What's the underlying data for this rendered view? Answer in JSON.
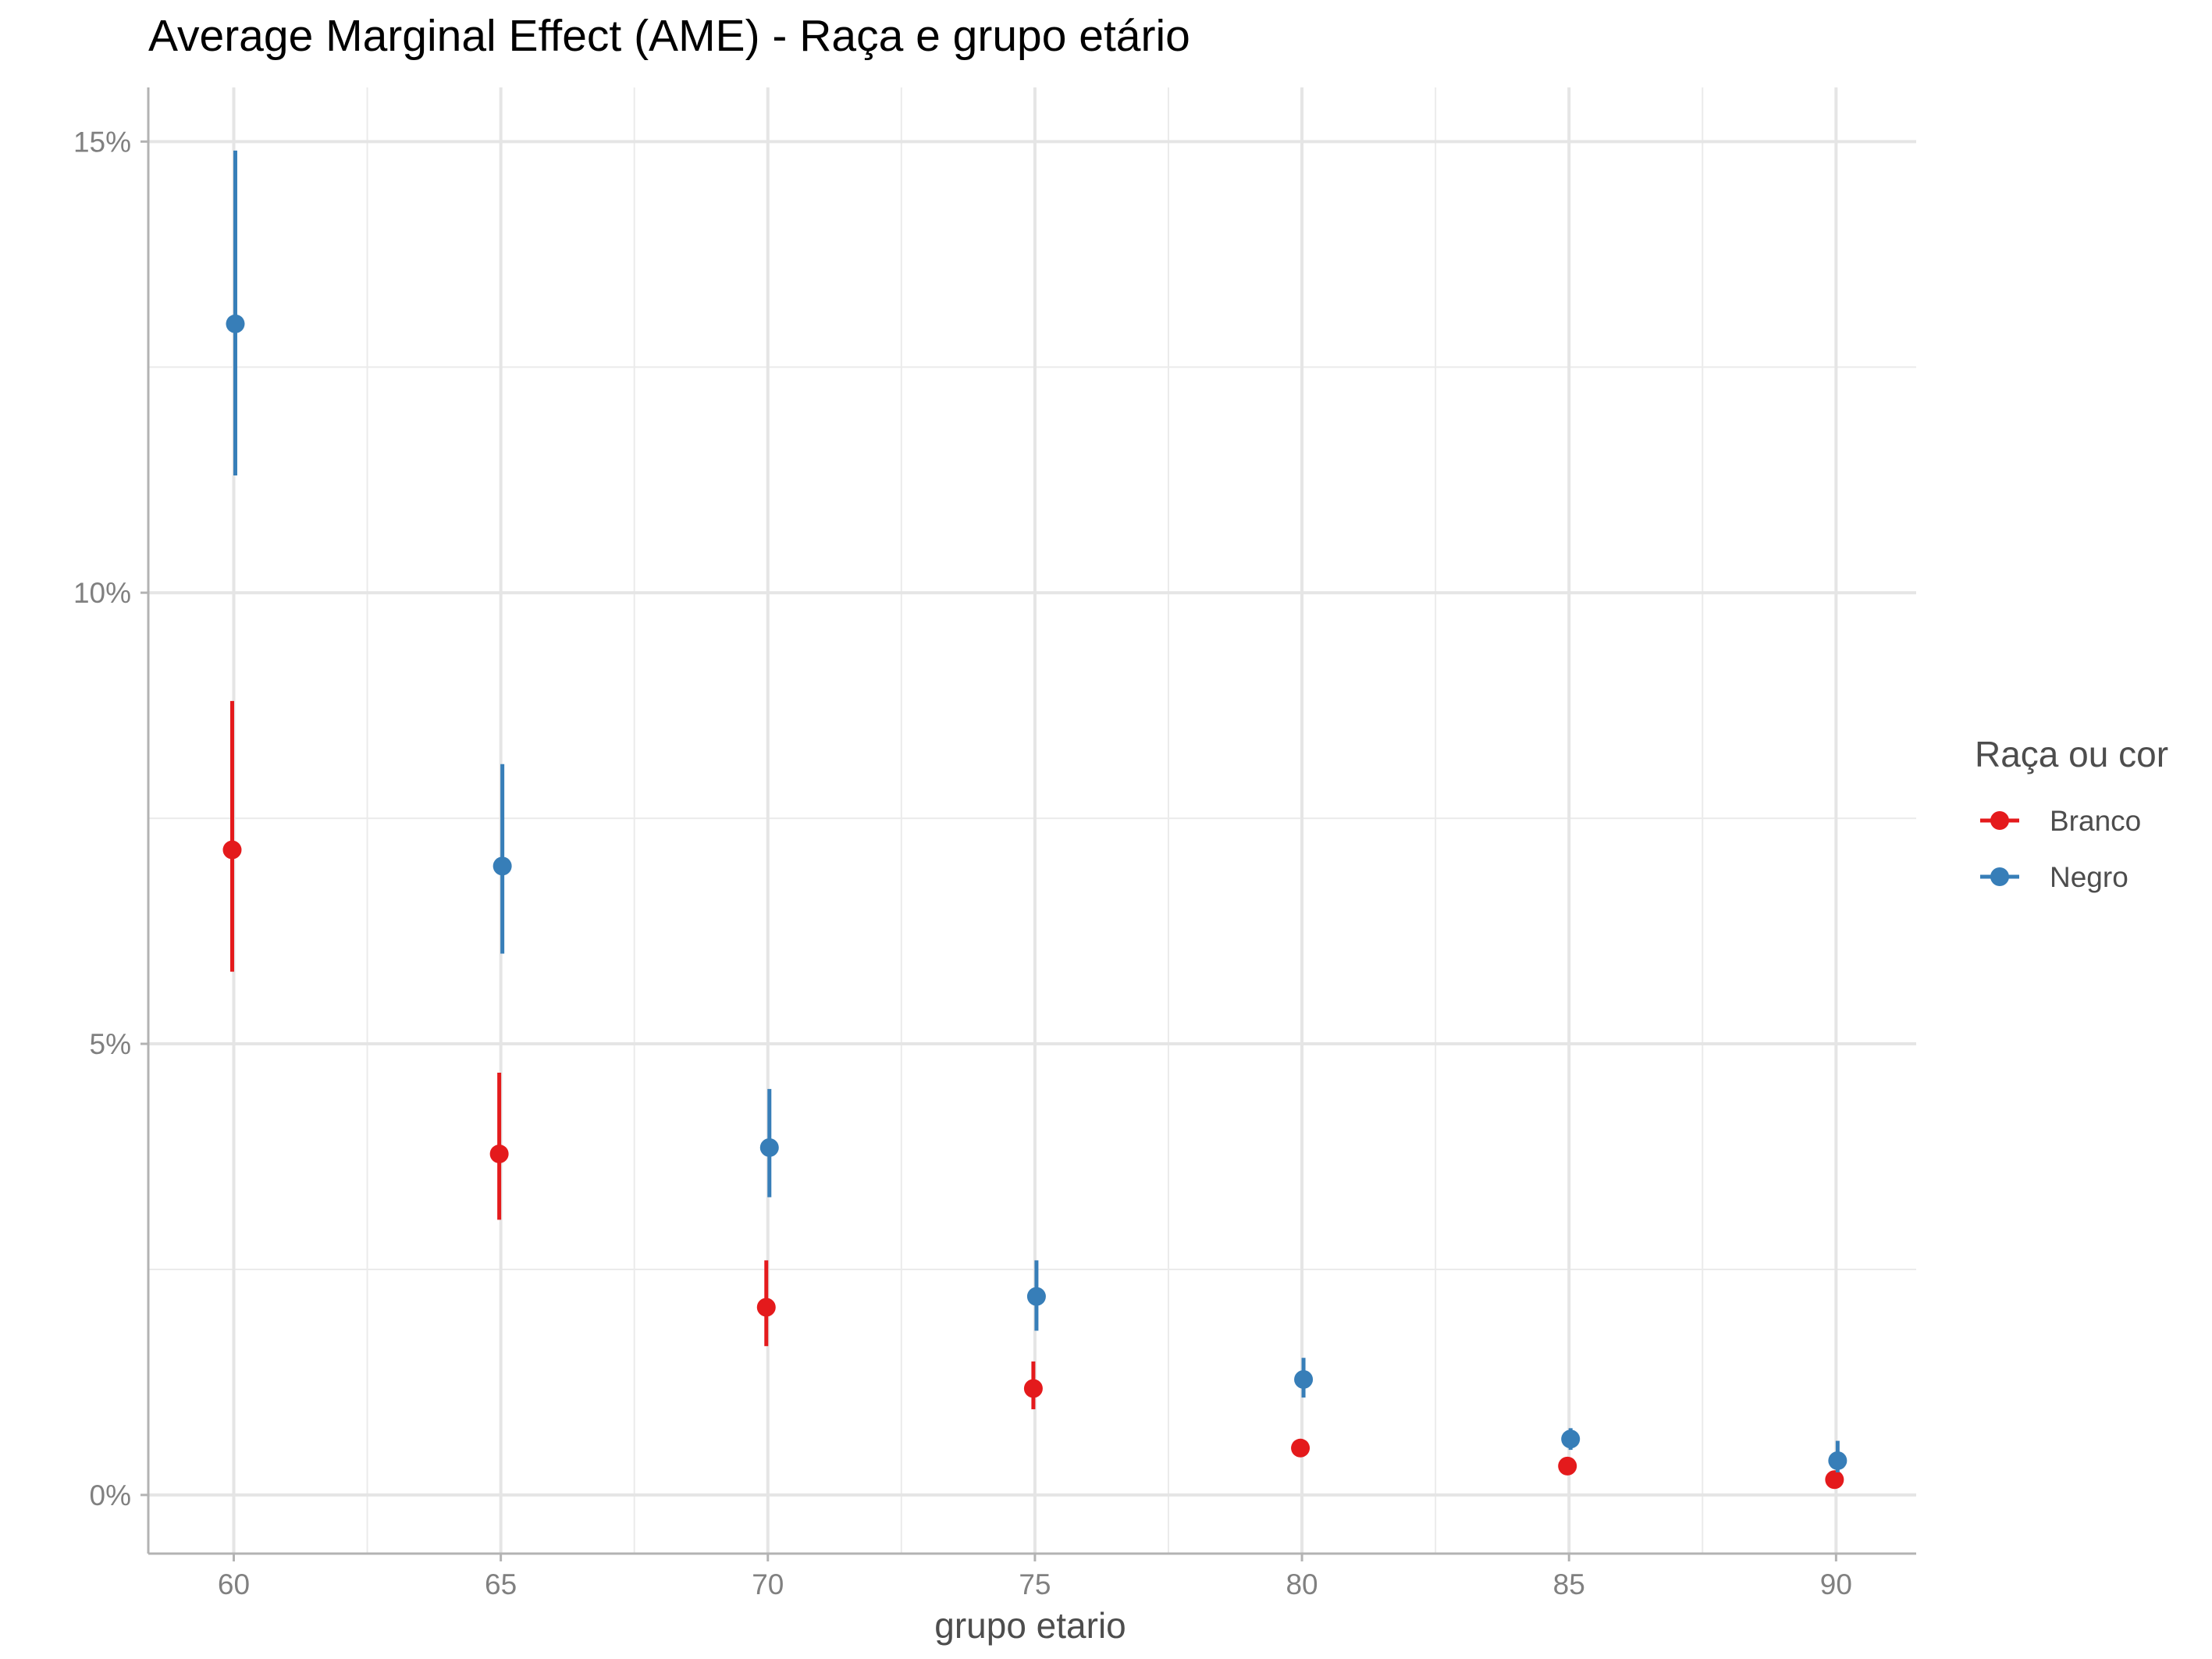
{
  "chart_data": {
    "type": "scatter",
    "title": "Average Marginal Effect (AME) - Raça e grupo etário",
    "xlabel": "grupo etario",
    "ylabel": "",
    "x": [
      60,
      65,
      70,
      75,
      80,
      85,
      90
    ],
    "x_ticks": [
      "60",
      "65",
      "70",
      "75",
      "80",
      "85",
      "90"
    ],
    "y_ticks": [
      {
        "value": 0,
        "label": "0%"
      },
      {
        "value": 5,
        "label": "5%"
      },
      {
        "value": 10,
        "label": "10%"
      },
      {
        "value": 15,
        "label": "15%"
      }
    ],
    "xlim": [
      58.4,
      91.5
    ],
    "ylim": [
      -0.65,
      15.6
    ],
    "grid": true,
    "legend": {
      "title": "Raça ou cor",
      "position": "right"
    },
    "series": [
      {
        "name": "Branco",
        "color": "#E41A1C",
        "values": [
          7.15,
          3.78,
          2.08,
          1.18,
          0.52,
          0.32,
          0.17
        ],
        "lower": [
          5.8,
          3.05,
          1.65,
          0.95,
          0.45,
          0.25,
          0.12
        ],
        "upper": [
          8.8,
          4.68,
          2.6,
          1.48,
          0.6,
          0.38,
          0.22
        ]
      },
      {
        "name": "Negro",
        "color": "#377EB8",
        "values": [
          12.98,
          6.97,
          3.85,
          2.2,
          1.28,
          0.62,
          0.38
        ],
        "lower": [
          11.3,
          6.0,
          3.3,
          1.82,
          1.08,
          0.5,
          0.25
        ],
        "upper": [
          14.9,
          8.1,
          4.5,
          2.6,
          1.52,
          0.74,
          0.6
        ]
      }
    ]
  }
}
